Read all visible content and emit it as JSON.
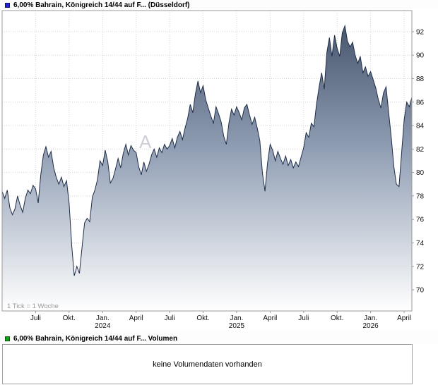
{
  "price_chart": {
    "legend_title": "6,00% Bahrain, Königreich 14/44 auf F... (Düsseldorf)",
    "marker_color": "#2323cc"
  },
  "volume_section": {
    "legend_title": "6,00% Bahrain, Königreich 14/44 auf F... Volumen",
    "marker_color": "#14a014",
    "message": "keine Volumendaten vorhanden"
  },
  "chart_data": {
    "type": "area",
    "title": "6,00% Bahrain, Königreich 14/44 auf F... (Düsseldorf)",
    "tick_note": "1 Tick = 1 Woche",
    "watermark": "A",
    "x_unit": "week",
    "grid": true,
    "legend_position": "top-left",
    "ylim": [
      68.2,
      93.8
    ],
    "yticks": [
      70,
      72,
      74,
      76,
      78,
      80,
      82,
      84,
      86,
      88,
      90,
      92
    ],
    "xticks": [
      {
        "label": "Juli",
        "week": 13
      },
      {
        "label": "Okt.",
        "week": 26
      },
      {
        "label": "Jan.",
        "sublabel": "2024",
        "week": 39
      },
      {
        "label": "April",
        "week": 52
      },
      {
        "label": "Juli",
        "week": 65
      },
      {
        "label": "Okt.",
        "week": 78
      },
      {
        "label": "Jan.",
        "sublabel": "2025",
        "week": 91
      },
      {
        "label": "April",
        "week": 104
      },
      {
        "label": "Juli",
        "week": 117
      },
      {
        "label": "Okt.",
        "week": 130
      },
      {
        "label": "Jan.",
        "sublabel": "2026",
        "week": 143
      },
      {
        "label": "April",
        "week": 156
      }
    ],
    "line_color": "#1f2d47",
    "fill_stops": [
      {
        "offset": "0%",
        "color": "#3f4e66"
      },
      {
        "offset": "45%",
        "color": "#8e9cb2"
      },
      {
        "offset": "100%",
        "color": "#ffffff"
      }
    ],
    "series": [
      {
        "name": "6,00% Bahrain, Königreich 14/44 auf F... (Düsseldorf)",
        "values": [
          78.4,
          77.8,
          78.5,
          77.0,
          76.4,
          76.9,
          78.0,
          77.2,
          76.6,
          77.8,
          78.5,
          78.2,
          78.9,
          78.6,
          77.4,
          79.8,
          81.5,
          82.2,
          81.3,
          81.8,
          80.4,
          79.6,
          79.0,
          79.6,
          78.8,
          79.3,
          77.4,
          73.8,
          71.2,
          72.0,
          71.4,
          73.6,
          75.7,
          76.1,
          75.8,
          77.9,
          78.5,
          79.4,
          81.0,
          80.6,
          81.9,
          80.9,
          79.1,
          79.5,
          80.3,
          81.2,
          80.4,
          81.6,
          82.4,
          81.5,
          82.3,
          81.9,
          81.7,
          80.5,
          79.8,
          80.9,
          80.1,
          80.7,
          81.5,
          82.0,
          81.3,
          82.1,
          81.7,
          82.4,
          82.0,
          82.3,
          82.9,
          82.1,
          83.0,
          83.5,
          82.8,
          83.8,
          84.6,
          85.8,
          85.1,
          86.7,
          87.8,
          86.8,
          87.4,
          86.2,
          85.5,
          84.8,
          84.2,
          85.6,
          85.0,
          84.3,
          83.1,
          82.4,
          84.2,
          85.4,
          84.9,
          85.6,
          85.1,
          84.5,
          85.5,
          85.8,
          84.9,
          84.1,
          84.7,
          83.8,
          82.7,
          80.0,
          78.4,
          80.8,
          82.4,
          81.9,
          81.0,
          81.8,
          81.2,
          80.7,
          81.4,
          80.6,
          81.1,
          80.4,
          80.9,
          80.5,
          81.3,
          82.1,
          83.4,
          83.0,
          84.2,
          83.9,
          85.8,
          87.3,
          88.5,
          87.1,
          90.2,
          91.5,
          89.9,
          91.7,
          90.6,
          89.9,
          91.9,
          92.5,
          91.2,
          90.7,
          91.1,
          90.0,
          89.3,
          89.9,
          88.5,
          89.0,
          88.2,
          88.6,
          87.9,
          87.2,
          86.2,
          85.5,
          86.8,
          87.3,
          85.1,
          83.0,
          80.5,
          79.0,
          78.8,
          81.6,
          84.5,
          86.0,
          85.6,
          86.4
        ]
      }
    ]
  }
}
